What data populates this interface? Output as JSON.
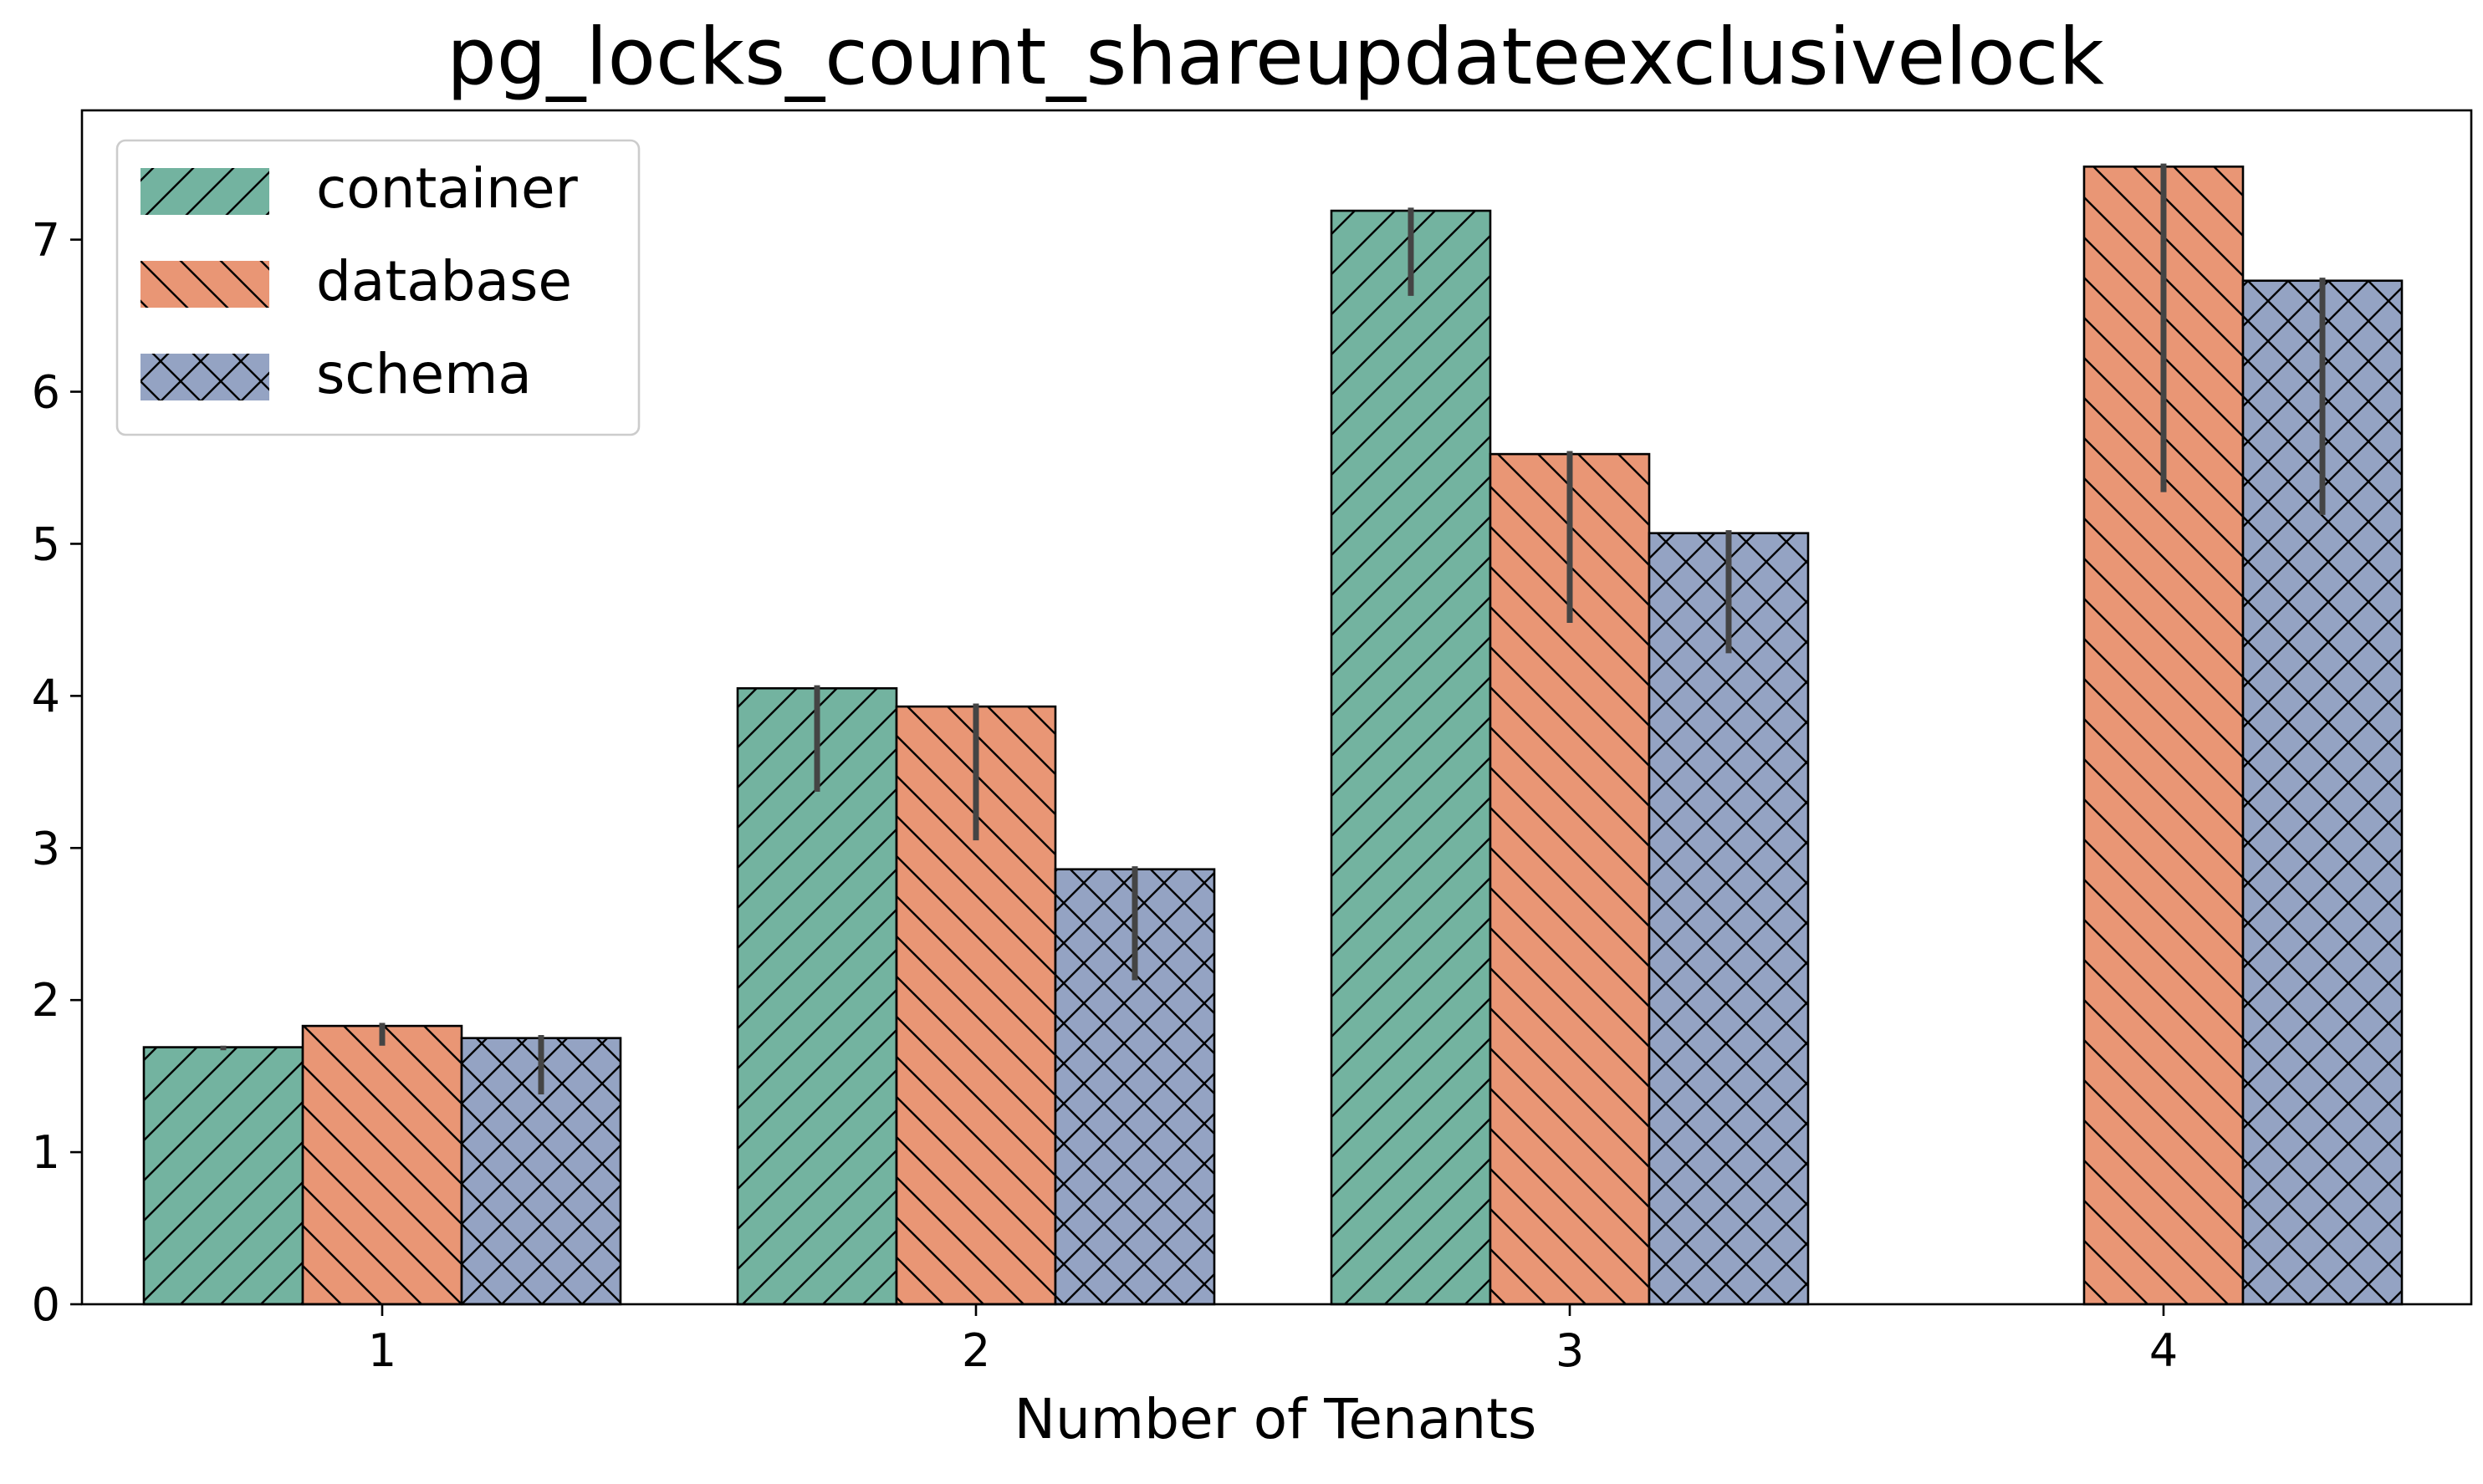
{
  "chart_data": {
    "type": "bar",
    "title": "pg_locks_count_shareupdateexclusivelock",
    "xlabel": "Number of Tenants",
    "ylabel": "",
    "categories": [
      "1",
      "2",
      "3",
      "4"
    ],
    "ylim": [
      0,
      7.85
    ],
    "yticks": [
      0,
      1,
      2,
      3,
      4,
      5,
      6,
      7
    ],
    "grid": false,
    "legend_position": "top-left",
    "series": [
      {
        "name": "container",
        "color": "#73b3a0",
        "hatch": "forward-diagonal",
        "values": [
          1.69,
          4.05,
          7.19,
          null
        ],
        "error_low": [
          1.67,
          3.37,
          6.63,
          null
        ],
        "error_high": [
          1.7,
          4.07,
          7.21,
          null
        ]
      },
      {
        "name": "database",
        "color": "#e99675",
        "hatch": "back-diagonal",
        "values": [
          1.83,
          3.93,
          5.59,
          7.48
        ],
        "error_low": [
          1.7,
          3.05,
          4.48,
          5.34
        ],
        "error_high": [
          1.85,
          3.95,
          5.61,
          7.5
        ]
      },
      {
        "name": "schema",
        "color": "#94a3c3",
        "hatch": "cross",
        "values": [
          1.75,
          2.86,
          5.07,
          6.73
        ],
        "error_low": [
          1.38,
          2.13,
          4.28,
          5.19
        ],
        "error_high": [
          1.77,
          2.88,
          5.09,
          6.75
        ]
      }
    ]
  }
}
